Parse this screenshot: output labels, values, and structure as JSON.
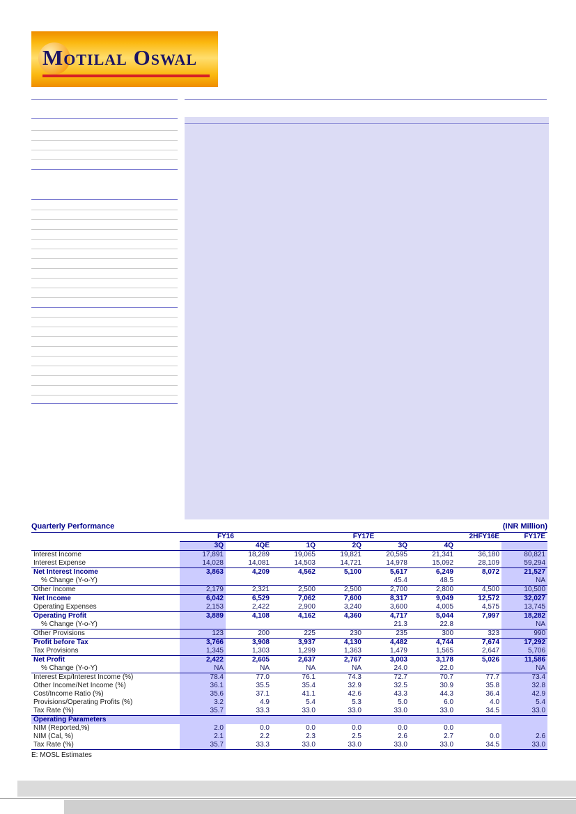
{
  "logo": {
    "name": "Motilal Oswal"
  },
  "colors": {
    "navy": "#00008B",
    "highlight_lavender": "#CCCCFF",
    "panel_lavender": "#DCDCF5",
    "logo_orange": "#F7A11A",
    "logo_red": "#D61F26"
  },
  "table": {
    "title": "Quarterly Performance",
    "unit": "(INR Million)",
    "col_groups": [
      {
        "label": "FY16",
        "span": 2
      },
      {
        "label": "FY17E",
        "span": 4
      },
      {
        "label": "2HFY16E",
        "span": 1
      },
      {
        "label": "FY17E",
        "span": 1
      }
    ],
    "sub_headers": [
      "3Q",
      "4QE",
      "1Q",
      "2Q",
      "3Q",
      "4Q",
      "",
      ""
    ],
    "rows": [
      {
        "label": "Interest Income",
        "style": "normal",
        "values": [
          "17,891",
          "18,289",
          "19,065",
          "19,821",
          "20,595",
          "21,341",
          "36,180",
          "80,821"
        ]
      },
      {
        "label": "Interest Expense",
        "style": "normal",
        "values": [
          "14,028",
          "14,081",
          "14,503",
          "14,721",
          "14,978",
          "15,092",
          "28,109",
          "59,294"
        ]
      },
      {
        "label": "Net Interest Income",
        "style": "bold",
        "border_top": true,
        "values": [
          "3,863",
          "4,209",
          "4,562",
          "5,100",
          "5,617",
          "6,249",
          "8,072",
          "21,527"
        ]
      },
      {
        "label": "% Change (Y-o-Y)",
        "style": "indent",
        "values": [
          "",
          "",
          "",
          "",
          "45.4",
          "48.5",
          "",
          "NA"
        ]
      },
      {
        "label": "Other Income",
        "style": "normal",
        "border_top": true,
        "values": [
          "2,179",
          "2,321",
          "2,500",
          "2,500",
          "2,700",
          "2,800",
          "4,500",
          "10,500"
        ]
      },
      {
        "label": "Net Income",
        "style": "bold",
        "border_top": true,
        "values": [
          "6,042",
          "6,529",
          "7,062",
          "7,600",
          "8,317",
          "9,049",
          "12,572",
          "32,027"
        ]
      },
      {
        "label": "Operating Expenses",
        "style": "normal",
        "values": [
          "2,153",
          "2,422",
          "2,900",
          "3,240",
          "3,600",
          "4,005",
          "4,575",
          "13,745"
        ]
      },
      {
        "label": "Operating Profit",
        "style": "bold",
        "border_top": true,
        "values": [
          "3,889",
          "4,108",
          "4,162",
          "4,360",
          "4,717",
          "5,044",
          "7,997",
          "18,282"
        ]
      },
      {
        "label": "% Change (Y-o-Y)",
        "style": "indent",
        "values": [
          "",
          "",
          "",
          "",
          "21.3",
          "22.8",
          "",
          "NA"
        ]
      },
      {
        "label": "Other Provisions",
        "style": "normal",
        "border_top": true,
        "values": [
          "123",
          "200",
          "225",
          "230",
          "235",
          "300",
          "323",
          "990"
        ]
      },
      {
        "label": "Profit before Tax",
        "style": "bold",
        "border_top": true,
        "values": [
          "3,766",
          "3,908",
          "3,937",
          "4,130",
          "4,482",
          "4,744",
          "7,674",
          "17,292"
        ]
      },
      {
        "label": "Tax Provisions",
        "style": "normal",
        "values": [
          "1,345",
          "1,303",
          "1,299",
          "1,363",
          "1,479",
          "1,565",
          "2,647",
          "5,706"
        ]
      },
      {
        "label": "Net Profit",
        "style": "bold",
        "border_top": true,
        "values": [
          "2,422",
          "2,605",
          "2,637",
          "2,767",
          "3,003",
          "3,178",
          "5,026",
          "11,586"
        ]
      },
      {
        "label": "% Change (Y-o-Y)",
        "style": "indent",
        "values": [
          "NA",
          "NA",
          "NA",
          "NA",
          "24.0",
          "22.0",
          "",
          "NA"
        ]
      },
      {
        "label": "Interest Exp/Interest Income (%)",
        "style": "normal",
        "border_top": true,
        "values": [
          "78.4",
          "77.0",
          "76.1",
          "74.3",
          "72.7",
          "70.7",
          "77.7",
          "73.4"
        ]
      },
      {
        "label": "Other Income/Net Income (%)",
        "style": "normal",
        "values": [
          "36.1",
          "35.5",
          "35.4",
          "32.9",
          "32.5",
          "30.9",
          "35.8",
          "32.8"
        ]
      },
      {
        "label": "Cost/Income Ratio (%)",
        "style": "normal",
        "values": [
          "35.6",
          "37.1",
          "41.1",
          "42.6",
          "43.3",
          "44.3",
          "36.4",
          "42.9"
        ]
      },
      {
        "label": "Provisions/Operating Profits (%)",
        "style": "normal",
        "values": [
          "3.2",
          "4.9",
          "5.4",
          "5.3",
          "5.0",
          "6.0",
          "4.0",
          "5.4"
        ]
      },
      {
        "label": "Tax Rate (%)",
        "style": "normal",
        "values": [
          "35.7",
          "33.3",
          "33.0",
          "33.0",
          "33.0",
          "33.0",
          "34.5",
          "33.0"
        ]
      },
      {
        "label": "Operating Parameters",
        "style": "section",
        "border_top": true
      },
      {
        "label": "NIM (Reported,%)",
        "style": "normal",
        "values": [
          "2.0",
          "0.0",
          "0.0",
          "0.0",
          "0.0",
          "0.0",
          "",
          ""
        ]
      },
      {
        "label": "NIM (Cal, %)",
        "style": "normal",
        "values": [
          "2.1",
          "2.2",
          "2.3",
          "2.5",
          "2.6",
          "2.7",
          "0.0",
          "2.6"
        ]
      },
      {
        "label": "Tax Rate (%)",
        "style": "normal",
        "values": [
          "35.7",
          "33.3",
          "33.0",
          "33.0",
          "33.0",
          "33.0",
          "34.5",
          "33.0"
        ]
      }
    ],
    "footnote": "E: MOSL Estimates"
  }
}
